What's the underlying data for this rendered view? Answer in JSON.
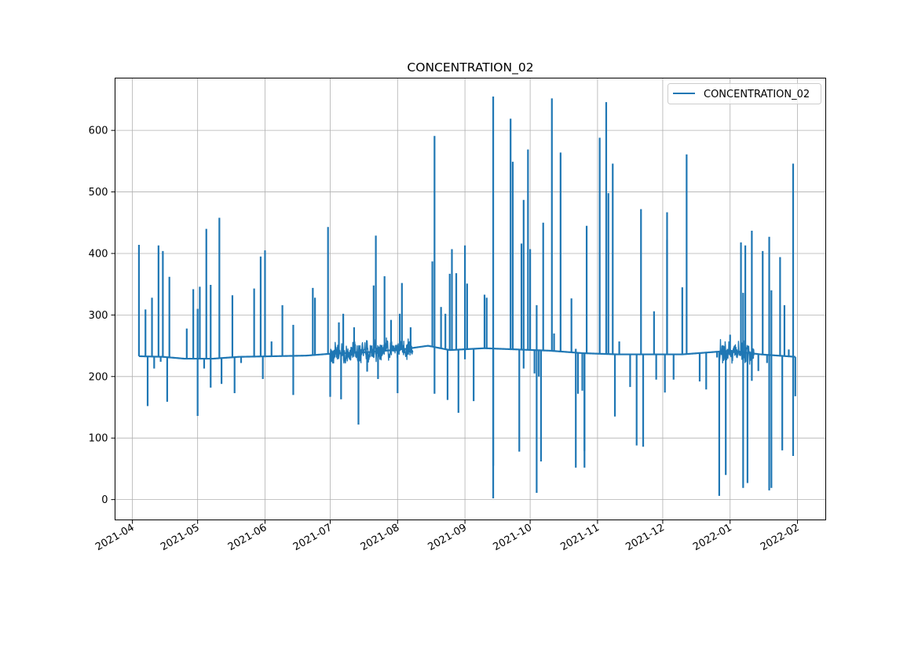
{
  "chart_data": {
    "type": "line",
    "title": "CONCENTRATION_02",
    "xlabel": "",
    "ylabel": "",
    "x_axis": "date",
    "xlim": [
      "2021-03-24",
      "2022-02-14"
    ],
    "ylim": [
      -33,
      685
    ],
    "grid": true,
    "legend_position": "top-right",
    "x_ticks": [
      "2021-04-01",
      "2021-05-01",
      "2021-06-01",
      "2021-07-01",
      "2021-08-01",
      "2021-09-01",
      "2021-10-01",
      "2021-11-01",
      "2021-12-01",
      "2022-01-01",
      "2022-02-01"
    ],
    "x_tick_labels": [
      "2021-04",
      "2021-05",
      "2021-06",
      "2021-07",
      "2021-08",
      "2021-09",
      "2021-10",
      "2021-11",
      "2021-12",
      "2022-01",
      "2022-02"
    ],
    "y_ticks": [
      0,
      100,
      200,
      300,
      400,
      500,
      600
    ],
    "y_tick_labels": [
      "0",
      "100",
      "200",
      "300",
      "400",
      "500",
      "600"
    ],
    "series": [
      {
        "name": "CONCENTRATION_02",
        "color": "#1f77b4",
        "baseline": [
          [
            "2021-04-04",
            233
          ],
          [
            "2021-04-15",
            232
          ],
          [
            "2021-04-25",
            229
          ],
          [
            "2021-05-08",
            229
          ],
          [
            "2021-05-20",
            232
          ],
          [
            "2021-06-05",
            233
          ],
          [
            "2021-06-20",
            234
          ],
          [
            "2021-07-01",
            237
          ],
          [
            "2021-07-20",
            240
          ],
          [
            "2021-08-05",
            245
          ],
          [
            "2021-08-15",
            250
          ],
          [
            "2021-08-25",
            243
          ],
          [
            "2021-09-10",
            246
          ],
          [
            "2021-09-25",
            244
          ],
          [
            "2021-10-10",
            242
          ],
          [
            "2021-10-25",
            238
          ],
          [
            "2021-11-10",
            236
          ],
          [
            "2021-11-25",
            236
          ],
          [
            "2021-12-10",
            236
          ],
          [
            "2021-12-25",
            240
          ],
          [
            "2022-01-01",
            242
          ],
          [
            "2022-01-15",
            236
          ],
          [
            "2022-01-31",
            232
          ]
        ],
        "noise_ranges": [
          {
            "start": "2021-07-01",
            "end": "2021-08-08",
            "min": 222,
            "max": 265
          },
          {
            "start": "2021-12-27",
            "end": "2022-01-12",
            "min": 215,
            "max": 262
          }
        ],
        "spikes": [
          [
            "2021-04-04",
            414
          ],
          [
            "2021-04-07",
            309
          ],
          [
            "2021-04-08",
            152
          ],
          [
            "2021-04-10",
            328
          ],
          [
            "2021-04-11",
            213
          ],
          [
            "2021-04-13",
            413
          ],
          [
            "2021-04-14",
            224
          ],
          [
            "2021-04-15",
            404
          ],
          [
            "2021-04-17",
            159
          ],
          [
            "2021-04-18",
            362
          ],
          [
            "2021-04-26",
            278
          ],
          [
            "2021-04-29",
            342
          ],
          [
            "2021-05-01",
            310
          ],
          [
            "2021-05-01",
            136
          ],
          [
            "2021-05-02",
            346
          ],
          [
            "2021-05-04",
            213
          ],
          [
            "2021-05-05",
            440
          ],
          [
            "2021-05-07",
            182
          ],
          [
            "2021-05-07",
            349
          ],
          [
            "2021-05-11",
            458
          ],
          [
            "2021-05-12",
            188
          ],
          [
            "2021-05-17",
            332
          ],
          [
            "2021-05-18",
            173
          ],
          [
            "2021-05-21",
            222
          ],
          [
            "2021-05-27",
            343
          ],
          [
            "2021-05-30",
            395
          ],
          [
            "2021-05-31",
            196
          ],
          [
            "2021-06-01",
            405
          ],
          [
            "2021-06-04",
            257
          ],
          [
            "2021-06-09",
            316
          ],
          [
            "2021-06-14",
            284
          ],
          [
            "2021-06-14",
            170
          ],
          [
            "2021-06-23",
            344
          ],
          [
            "2021-06-24",
            328
          ],
          [
            "2021-06-30",
            443
          ],
          [
            "2021-07-01",
            167
          ],
          [
            "2021-07-05",
            288
          ],
          [
            "2021-07-06",
            163
          ],
          [
            "2021-07-07",
            302
          ],
          [
            "2021-07-12",
            280
          ],
          [
            "2021-07-14",
            122
          ],
          [
            "2021-07-18",
            208
          ],
          [
            "2021-07-21",
            348
          ],
          [
            "2021-07-22",
            429
          ],
          [
            "2021-07-23",
            196
          ],
          [
            "2021-07-26",
            363
          ],
          [
            "2021-07-29",
            292
          ],
          [
            "2021-08-01",
            173
          ],
          [
            "2021-08-02",
            302
          ],
          [
            "2021-08-03",
            352
          ],
          [
            "2021-08-07",
            280
          ],
          [
            "2021-08-17",
            387
          ],
          [
            "2021-08-18",
            591
          ],
          [
            "2021-08-18",
            172
          ],
          [
            "2021-08-21",
            313
          ],
          [
            "2021-08-23",
            302
          ],
          [
            "2021-08-24",
            162
          ],
          [
            "2021-08-25",
            367
          ],
          [
            "2021-08-26",
            407
          ],
          [
            "2021-08-28",
            368
          ],
          [
            "2021-08-29",
            141
          ],
          [
            "2021-09-01",
            413
          ],
          [
            "2021-09-01",
            228
          ],
          [
            "2021-09-02",
            351
          ],
          [
            "2021-09-05",
            160
          ],
          [
            "2021-09-10",
            333
          ],
          [
            "2021-09-11",
            328
          ],
          [
            "2021-09-14",
            55
          ],
          [
            "2021-09-14",
            655
          ],
          [
            "2021-09-14",
            2
          ],
          [
            "2021-09-22",
            619
          ],
          [
            "2021-09-23",
            549
          ],
          [
            "2021-09-26",
            78
          ],
          [
            "2021-09-27",
            416
          ],
          [
            "2021-09-28",
            487
          ],
          [
            "2021-09-28",
            213
          ],
          [
            "2021-09-30",
            569
          ],
          [
            "2021-10-01",
            407
          ],
          [
            "2021-10-03",
            205
          ],
          [
            "2021-10-04",
            316
          ],
          [
            "2021-10-04",
            11
          ],
          [
            "2021-10-05",
            200
          ],
          [
            "2021-10-06",
            62
          ],
          [
            "2021-10-07",
            450
          ],
          [
            "2021-10-11",
            652
          ],
          [
            "2021-10-12",
            270
          ],
          [
            "2021-10-15",
            564
          ],
          [
            "2021-10-20",
            327
          ],
          [
            "2021-10-22",
            245
          ],
          [
            "2021-10-22",
            52
          ],
          [
            "2021-10-23",
            172
          ],
          [
            "2021-10-25",
            177
          ],
          [
            "2021-10-26",
            52
          ],
          [
            "2021-10-26",
            79
          ],
          [
            "2021-10-27",
            445
          ],
          [
            "2021-11-02",
            588
          ],
          [
            "2021-11-05",
            646
          ],
          [
            "2021-11-06",
            498
          ],
          [
            "2021-11-08",
            546
          ],
          [
            "2021-11-09",
            135
          ],
          [
            "2021-11-11",
            257
          ],
          [
            "2021-11-16",
            183
          ],
          [
            "2021-11-19",
            88
          ],
          [
            "2021-11-21",
            472
          ],
          [
            "2021-11-22",
            86
          ],
          [
            "2021-11-27",
            306
          ],
          [
            "2021-11-28",
            195
          ],
          [
            "2021-12-02",
            174
          ],
          [
            "2021-12-03",
            467
          ],
          [
            "2021-12-03",
            422
          ],
          [
            "2021-12-06",
            195
          ],
          [
            "2021-12-10",
            345
          ],
          [
            "2021-12-12",
            561
          ],
          [
            "2021-12-18",
            192
          ],
          [
            "2021-12-21",
            179
          ],
          [
            "2021-12-26",
            231
          ],
          [
            "2021-12-27",
            6
          ],
          [
            "2021-12-29",
            245
          ],
          [
            "2021-12-30",
            40
          ],
          [
            "2022-01-01",
            268
          ],
          [
            "2022-01-06",
            418
          ],
          [
            "2022-01-07",
            336
          ],
          [
            "2022-01-07",
            19
          ],
          [
            "2022-01-08",
            413
          ],
          [
            "2022-01-09",
            27
          ],
          [
            "2022-01-11",
            437
          ],
          [
            "2022-01-11",
            193
          ],
          [
            "2022-01-14",
            209
          ],
          [
            "2022-01-16",
            404
          ],
          [
            "2022-01-18",
            222
          ],
          [
            "2022-01-19",
            427
          ],
          [
            "2022-01-19",
            15
          ],
          [
            "2022-01-20",
            340
          ],
          [
            "2022-01-20",
            19
          ],
          [
            "2022-01-24",
            394
          ],
          [
            "2022-01-25",
            80
          ],
          [
            "2022-01-26",
            316
          ],
          [
            "2022-01-28",
            244
          ],
          [
            "2022-01-30",
            71
          ],
          [
            "2022-01-30",
            546
          ],
          [
            "2022-01-31",
            168
          ]
        ]
      }
    ]
  }
}
